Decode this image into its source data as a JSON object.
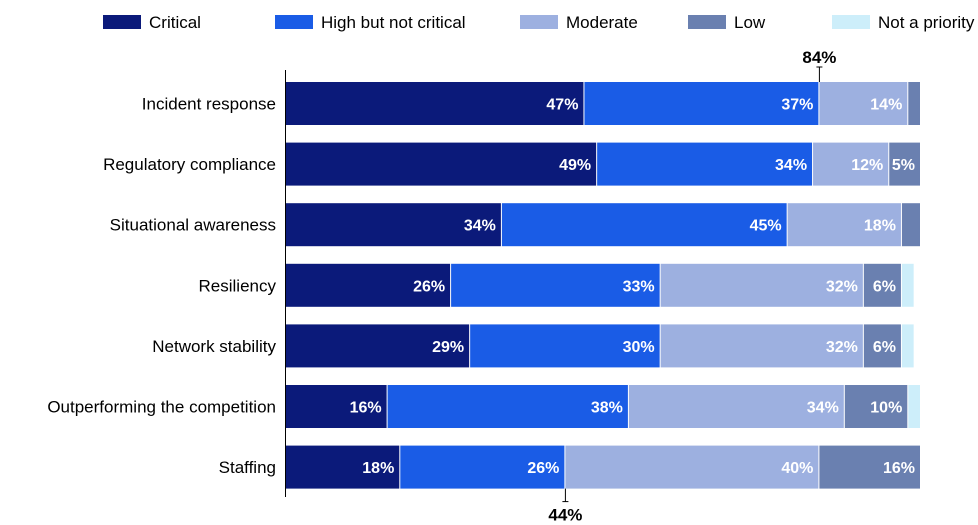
{
  "chart_data": {
    "type": "bar",
    "orientation": "horizontal",
    "stacked": true,
    "categories": [
      "Incident response",
      "Regulatory compliance",
      "Situational awareness",
      "Resiliency",
      "Network stability",
      "Outperforming the competition",
      "Staffing"
    ],
    "series": [
      {
        "name": "Critical",
        "color": "#0b1a7a",
        "values": [
          47,
          49,
          34,
          26,
          29,
          16,
          18
        ],
        "labels": [
          "47%",
          "49%",
          "34%",
          "26%",
          "29%",
          "16%",
          "18%"
        ]
      },
      {
        "name": "High but not critical",
        "color": "#1a5ce6",
        "values": [
          37,
          34,
          45,
          33,
          30,
          38,
          26
        ],
        "labels": [
          "37%",
          "34%",
          "45%",
          "33%",
          "30%",
          "38%",
          "26%"
        ]
      },
      {
        "name": "Moderate",
        "color": "#9db0e0",
        "values": [
          14,
          12,
          18,
          32,
          32,
          34,
          40
        ],
        "labels": [
          "14%",
          "12%",
          "18%",
          "32%",
          "32%",
          "34%",
          "40%"
        ]
      },
      {
        "name": "Low",
        "color": "#6a80b0",
        "values": [
          2,
          5,
          3,
          6,
          6,
          10,
          16
        ],
        "labels": [
          "",
          "5%",
          "",
          "6%",
          "6%",
          "10%",
          "16%"
        ]
      },
      {
        "name": "Not a priority",
        "color": "#cdeefa",
        "values": [
          0,
          0,
          0,
          2,
          2,
          2,
          0
        ],
        "labels": [
          "",
          "",
          "",
          "",
          "",
          "",
          ""
        ]
      }
    ],
    "xlim": [
      0,
      100
    ],
    "legend": "top",
    "grid": false,
    "callouts": [
      {
        "text": "84%",
        "category": "Incident response",
        "value": 84,
        "position": "above"
      },
      {
        "text": "44%",
        "category": "Staffing",
        "value": 44,
        "position": "below"
      }
    ]
  }
}
